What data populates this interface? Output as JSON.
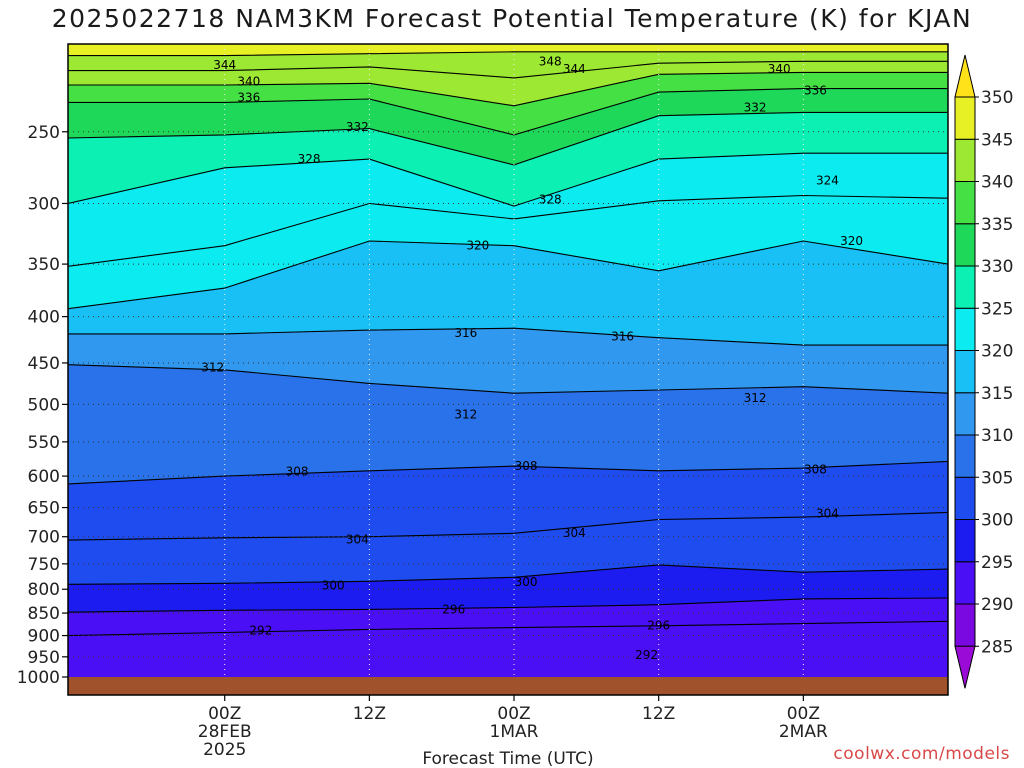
{
  "header": {
    "title": "2025022718 NAM3KM Forecast Potential Temperature (K) for KJAN"
  },
  "footer": {
    "credit": "coolwx.com/models"
  },
  "chart_data": {
    "type": "heatmap",
    "title": "2025022718 NAM3KM Forecast Potential Temperature (K) for KJAN",
    "xlabel": "Forecast Time (UTC)",
    "ylabel": "",
    "x_range_hours": [
      -13,
      60
    ],
    "y_axis": {
      "scale": "log",
      "reversed": true,
      "range": [
        1000,
        200
      ],
      "ticks": [
        250,
        300,
        350,
        400,
        450,
        500,
        550,
        600,
        650,
        700,
        750,
        800,
        850,
        900,
        950,
        1000
      ]
    },
    "x_ticks": [
      {
        "hour": 0,
        "lines": [
          "00Z",
          "28FEB",
          "2025"
        ]
      },
      {
        "hour": 12,
        "lines": [
          "12Z"
        ]
      },
      {
        "hour": 24,
        "lines": [
          "00Z",
          "1MAR"
        ]
      },
      {
        "hour": 36,
        "lines": [
          "12Z"
        ]
      },
      {
        "hour": 48,
        "lines": [
          "00Z",
          "2MAR"
        ]
      }
    ],
    "colorbar": {
      "levels": [
        285,
        290,
        295,
        300,
        305,
        310,
        315,
        320,
        325,
        330,
        335,
        340,
        345,
        350
      ],
      "colors": [
        "#7a08e0",
        "#4b0ff5",
        "#1c1cf0",
        "#1f4cee",
        "#2a72ea",
        "#3198ef",
        "#18c0f5",
        "#0cecf0",
        "#0cf0b4",
        "#1ed85a",
        "#45e044",
        "#9ce832",
        "#e6f024",
        "#ffe21a"
      ]
    },
    "series": [
      {
        "name": "292",
        "values": [
          [
            -13,
            900
          ],
          [
            0,
            893
          ],
          [
            12,
            886
          ],
          [
            24,
            882
          ],
          [
            36,
            878
          ],
          [
            48,
            873
          ],
          [
            60,
            868
          ]
        ]
      },
      {
        "name": "296",
        "values": [
          [
            -13,
            848
          ],
          [
            0,
            844
          ],
          [
            12,
            842
          ],
          [
            24,
            838
          ],
          [
            36,
            832
          ],
          [
            48,
            820
          ],
          [
            60,
            818
          ]
        ]
      },
      {
        "name": "300",
        "values": [
          [
            -13,
            790
          ],
          [
            0,
            788
          ],
          [
            12,
            784
          ],
          [
            24,
            776
          ],
          [
            36,
            752
          ],
          [
            48,
            766
          ],
          [
            60,
            760
          ]
        ]
      },
      {
        "name": "304",
        "values": [
          [
            -13,
            706
          ],
          [
            0,
            702
          ],
          [
            12,
            700
          ],
          [
            24,
            694
          ],
          [
            36,
            670
          ],
          [
            48,
            666
          ],
          [
            60,
            658
          ]
        ]
      },
      {
        "name": "308",
        "values": [
          [
            -13,
            612
          ],
          [
            0,
            600
          ],
          [
            12,
            592
          ],
          [
            24,
            585
          ],
          [
            36,
            592
          ],
          [
            48,
            588
          ],
          [
            60,
            578
          ]
        ]
      },
      {
        "name": "312",
        "values": [
          [
            -13,
            452
          ],
          [
            0,
            458
          ],
          [
            12,
            474
          ],
          [
            24,
            486
          ],
          [
            36,
            482
          ],
          [
            48,
            478
          ],
          [
            60,
            486
          ]
        ]
      },
      {
        "name": "316",
        "values": [
          [
            -13,
            418
          ],
          [
            0,
            418
          ],
          [
            12,
            414
          ],
          [
            24,
            412
          ],
          [
            36,
            422
          ],
          [
            48,
            430
          ],
          [
            60,
            430
          ]
        ]
      },
      {
        "name": "320",
        "values": [
          [
            -13,
            392
          ],
          [
            0,
            372
          ],
          [
            12,
            330
          ],
          [
            24,
            334
          ],
          [
            36,
            356
          ],
          [
            48,
            330
          ],
          [
            60,
            350
          ]
        ]
      },
      {
        "name": "324",
        "values": [
          [
            -13,
            352
          ],
          [
            0,
            334
          ],
          [
            12,
            300
          ],
          [
            24,
            312
          ],
          [
            36,
            298
          ],
          [
            48,
            294
          ],
          [
            60,
            296
          ]
        ]
      },
      {
        "name": "328",
        "values": [
          [
            -13,
            300
          ],
          [
            0,
            274
          ],
          [
            12,
            268
          ],
          [
            24,
            302
          ],
          [
            36,
            268
          ],
          [
            48,
            264
          ],
          [
            60,
            264
          ]
        ]
      },
      {
        "name": "332",
        "values": [
          [
            -13,
            254
          ],
          [
            0,
            252
          ],
          [
            12,
            248
          ],
          [
            24,
            272
          ],
          [
            36,
            240
          ],
          [
            48,
            238
          ],
          [
            60,
            238
          ]
        ]
      },
      {
        "name": "336",
        "values": [
          [
            -13,
            232
          ],
          [
            0,
            232
          ],
          [
            12,
            230
          ],
          [
            24,
            252
          ],
          [
            36,
            226
          ],
          [
            48,
            224
          ],
          [
            60,
            224
          ]
        ]
      },
      {
        "name": "340",
        "values": [
          [
            -13,
            222
          ],
          [
            0,
            222
          ],
          [
            12,
            221
          ],
          [
            24,
            234
          ],
          [
            36,
            216
          ],
          [
            48,
            215
          ],
          [
            60,
            215
          ]
        ]
      },
      {
        "name": "344",
        "values": [
          [
            -13,
            214
          ],
          [
            0,
            214
          ],
          [
            12,
            212
          ],
          [
            24,
            218
          ],
          [
            36,
            210
          ],
          [
            48,
            209
          ],
          [
            60,
            209
          ]
        ]
      },
      {
        "name": "348",
        "values": [
          [
            -13,
            206
          ],
          [
            0,
            206
          ],
          [
            12,
            205
          ],
          [
            24,
            204
          ],
          [
            36,
            204
          ],
          [
            48,
            204
          ],
          [
            60,
            204
          ]
        ]
      }
    ],
    "contour_labels": [
      {
        "text": "344",
        "hour": 0,
        "p": 211
      },
      {
        "text": "348",
        "hour": 27,
        "p": 209
      },
      {
        "text": "344",
        "hour": 29,
        "p": 213
      },
      {
        "text": "340",
        "hour": 46,
        "p": 213
      },
      {
        "text": "340",
        "hour": 2,
        "p": 220
      },
      {
        "text": "336",
        "hour": 2,
        "p": 229
      },
      {
        "text": "336",
        "hour": 49,
        "p": 225
      },
      {
        "text": "332",
        "hour": 44,
        "p": 235
      },
      {
        "text": "332",
        "hour": 11,
        "p": 247
      },
      {
        "text": "328",
        "hour": 7,
        "p": 268
      },
      {
        "text": "324",
        "hour": 50,
        "p": 283
      },
      {
        "text": "328",
        "hour": 27,
        "p": 297
      },
      {
        "text": "320",
        "hour": 21,
        "p": 334
      },
      {
        "text": "320",
        "hour": 52,
        "p": 330
      },
      {
        "text": "316",
        "hour": 20,
        "p": 417
      },
      {
        "text": "316",
        "hour": 33,
        "p": 421
      },
      {
        "text": "312",
        "hour": -1,
        "p": 455
      },
      {
        "text": "312",
        "hour": 20,
        "p": 513
      },
      {
        "text": "312",
        "hour": 44,
        "p": 492
      },
      {
        "text": "308",
        "hour": 6,
        "p": 593
      },
      {
        "text": "308",
        "hour": 25,
        "p": 585
      },
      {
        "text": "308",
        "hour": 49,
        "p": 590
      },
      {
        "text": "304",
        "hour": 50,
        "p": 660
      },
      {
        "text": "304",
        "hour": 29,
        "p": 693
      },
      {
        "text": "304",
        "hour": 11,
        "p": 705
      },
      {
        "text": "300",
        "hour": 9,
        "p": 792
      },
      {
        "text": "300",
        "hour": 25,
        "p": 785
      },
      {
        "text": "296",
        "hour": 19,
        "p": 842
      },
      {
        "text": "296",
        "hour": 36,
        "p": 877
      },
      {
        "text": "292",
        "hour": 3,
        "p": 888
      },
      {
        "text": "292",
        "hour": 35,
        "p": 945
      }
    ]
  }
}
